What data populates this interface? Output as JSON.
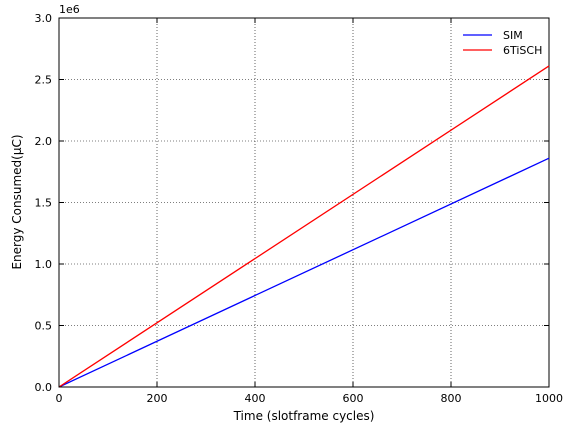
{
  "chart_data": {
    "type": "line",
    "title": "",
    "xlabel": "Time (slotframe cycles)",
    "ylabel": "Energy Consumed(μC)",
    "y_scale_label": "1e6",
    "xlim": [
      0,
      1000
    ],
    "ylim": [
      0,
      3000000
    ],
    "x_ticks": [
      0,
      200,
      400,
      600,
      800,
      1000
    ],
    "x_tick_labels": [
      "0",
      "200",
      "400",
      "600",
      "800",
      "1000"
    ],
    "y_ticks": [
      0,
      500000,
      1000000,
      1500000,
      2000000,
      2500000,
      3000000
    ],
    "y_tick_labels": [
      "0.0",
      "0.5",
      "1.0",
      "1.5",
      "2.0",
      "2.5",
      "3.0"
    ],
    "grid": true,
    "legend_position": "top-right",
    "series": [
      {
        "name": "SIM",
        "color": "#0000ff",
        "x": [
          0,
          1000
        ],
        "y": [
          0,
          1860000
        ]
      },
      {
        "name": "6TiSCH",
        "color": "#ff0000",
        "x": [
          0,
          1000
        ],
        "y": [
          0,
          2610000
        ]
      }
    ]
  }
}
